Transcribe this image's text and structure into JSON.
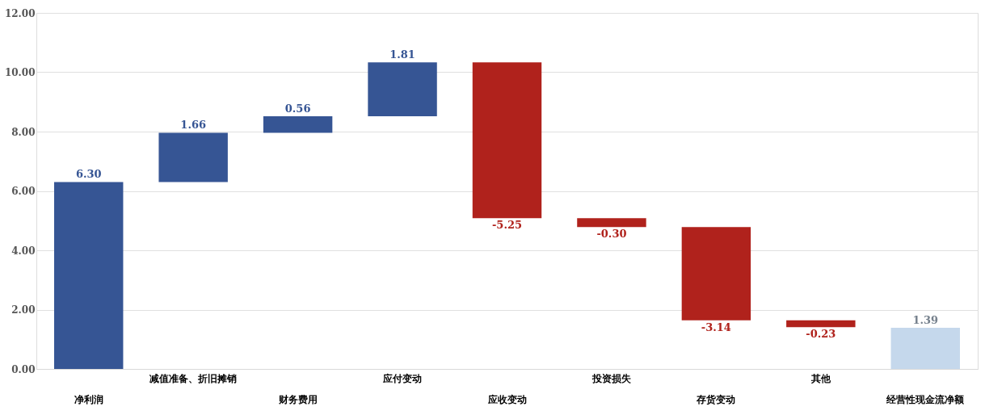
{
  "chart_data": {
    "type": "bar",
    "categories": [
      "净利润",
      "减值准备、折旧摊销",
      "财务费用",
      "应付变动",
      "应收变动",
      "投资损失",
      "存货变动",
      "其他",
      "经营性现金流净额"
    ],
    "values": [
      6.3,
      1.66,
      0.56,
      1.81,
      -5.25,
      -0.3,
      -3.14,
      -0.23,
      1.39
    ],
    "base": [
      0,
      6.3,
      7.96,
      8.52,
      10.33,
      5.08,
      4.78,
      1.64,
      0
    ],
    "colors": [
      "#365594",
      "#365594",
      "#365594",
      "#365594",
      "#b0221c",
      "#b0221c",
      "#b0221c",
      "#b0221c",
      "#c5d8ec"
    ],
    "value_labels": [
      "6.30",
      "1.66",
      "0.56",
      "1.81",
      "-5.25",
      "-0.30",
      "-3.14",
      "-0.23",
      "1.39"
    ],
    "ylim": [
      0,
      12
    ],
    "yticks": [
      {
        "value": 0,
        "label": "0.00"
      },
      {
        "value": 2,
        "label": "2.00"
      },
      {
        "value": 4,
        "label": "4.00"
      },
      {
        "value": 6,
        "label": "6.00"
      },
      {
        "value": 8,
        "label": "8.00"
      },
      {
        "value": 10,
        "label": "10.00"
      },
      {
        "value": 12,
        "label": "12.00"
      }
    ],
    "grid": "y"
  }
}
